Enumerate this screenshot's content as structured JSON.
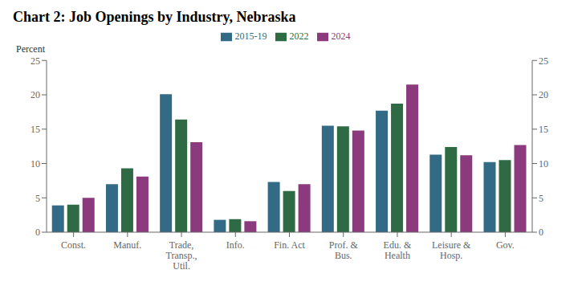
{
  "chart_data": {
    "type": "bar",
    "title": "Chart 2: Job Openings by Industry, Nebraska",
    "ylabel": "Percent",
    "categories": [
      "Const.",
      "Manuf.",
      "Trade,\nTransp.,\nUtil.",
      "Info.",
      "Fin. Act",
      "Prof. &\nBus.",
      "Edu. &\nHealth",
      "Leisure &\nHosp.",
      "Gov."
    ],
    "series": [
      {
        "name": "2015-19",
        "color": "#336B87",
        "values": [
          3.9,
          7.0,
          20.1,
          1.8,
          7.3,
          15.5,
          17.7,
          11.3,
          10.2
        ]
      },
      {
        "name": "2022",
        "color": "#2E6B44",
        "values": [
          4.0,
          9.3,
          16.4,
          1.9,
          6.0,
          15.4,
          18.7,
          12.4,
          10.5
        ]
      },
      {
        "name": "2024",
        "color": "#8B3A7E",
        "values": [
          5.0,
          8.1,
          13.1,
          1.6,
          7.0,
          14.8,
          21.5,
          11.2,
          12.7
        ]
      }
    ],
    "ylim": [
      0,
      25
    ],
    "yticks": [
      0,
      5,
      10,
      15,
      20,
      25
    ],
    "y2lim": [
      0,
      25
    ],
    "y2ticks": [
      0,
      5,
      10,
      15,
      20,
      25
    ],
    "legend": "top",
    "grid": false
  }
}
